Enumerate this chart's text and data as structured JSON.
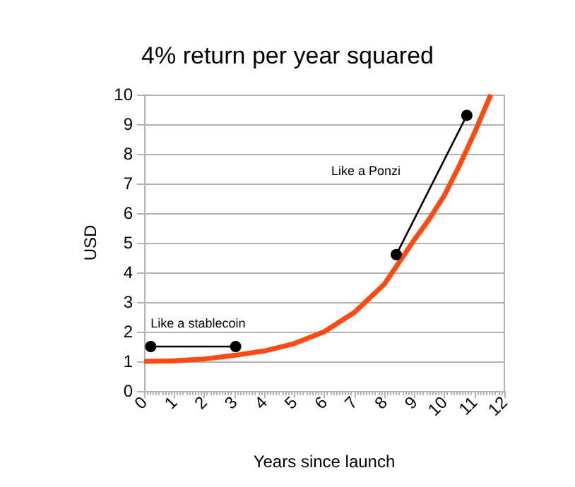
{
  "chart_data": {
    "type": "line",
    "title": "4% return per year squared",
    "xlabel": "Years since launch",
    "ylabel": "USD",
    "xlim": [
      0,
      12
    ],
    "xticks": [
      0,
      1,
      2,
      3,
      4,
      5,
      6,
      7,
      8,
      9,
      10,
      11,
      12
    ],
    "ylim": [
      0,
      10
    ],
    "yticks": [
      0,
      1,
      2,
      3,
      4,
      5,
      6,
      7,
      8,
      9,
      10
    ],
    "grid": "y",
    "series": [
      {
        "color": "#ff4a12",
        "marker": "none",
        "x": [
          0,
          1,
          2,
          3,
          4,
          5,
          6,
          7,
          8,
          9,
          9.5,
          10,
          10.5,
          11,
          11.55
        ],
        "values": [
          1.0,
          1.02,
          1.08,
          1.2,
          1.35,
          1.6,
          2.0,
          2.65,
          3.6,
          5.1,
          5.8,
          6.6,
          7.6,
          8.7,
          10
        ]
      },
      {
        "color": "#000000",
        "marker": "circle",
        "x": [
          0.22,
          3.05
        ],
        "values": [
          1.5,
          1.5
        ]
      },
      {
        "color": "#000000",
        "marker": "circle",
        "x": [
          8.4,
          10.75
        ],
        "values": [
          4.6,
          9.3
        ]
      }
    ],
    "annotations": [
      "Like a stablecoin",
      "Like a Ponzi"
    ]
  }
}
